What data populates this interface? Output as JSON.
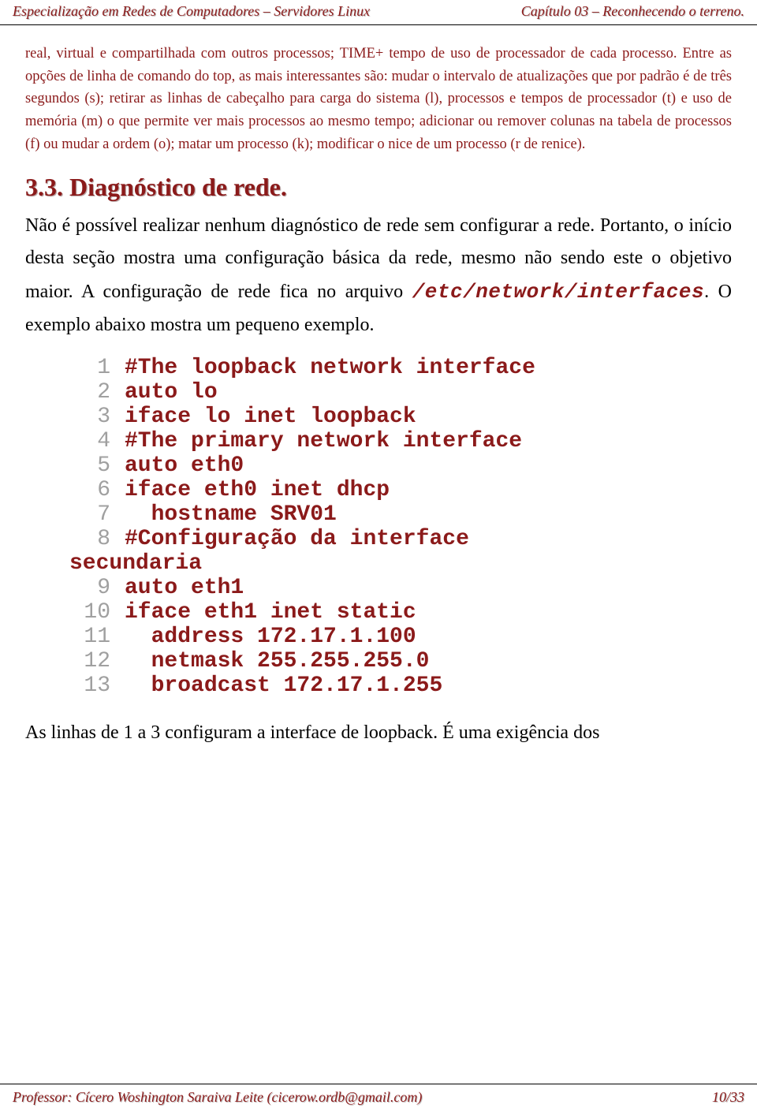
{
  "header": {
    "left": "Especialização em Redes de Computadores – Servidores Linux",
    "right": "Capítulo 03 – Reconhecendo o terreno."
  },
  "body": {
    "small_para": "real, virtual e compartilhada com outros processos; TIME+ tempo de uso de processador de cada processo. Entre as opções de linha de comando do top, as mais interessantes são: mudar o intervalo de atualizações que por padrão é de três segundos (s); retirar as linhas de cabeçalho para carga do sistema (l), processos e tempos de processador (t) e uso de memória (m) o que permite ver mais processos ao mesmo tempo; adicionar ou remover colunas na tabela de processos (f) ou mudar a ordem (o); matar um processo (k); modificar o nice de um processo (r de renice).",
    "heading": "3.3. Diagnóstico de rede.",
    "big_para_pre": "Não é possível realizar nenhum diagnóstico de rede sem configurar a rede. Portanto, o início desta seção mostra uma configuração básica da rede, mesmo não sendo este o objetivo maior. A configuração de rede fica no arquivo ",
    "code_inline": "/etc/network/interfaces",
    "big_para_post": ". O exemplo abaixo mostra um pequeno exemplo.",
    "code_lines": [
      {
        "n": "1",
        "t": "#The loopback network interface"
      },
      {
        "n": "2",
        "t": "auto lo"
      },
      {
        "n": "3",
        "t": "iface lo inet loopback"
      },
      {
        "n": "4",
        "t": "#The primary network interface"
      },
      {
        "n": "5",
        "t": "auto eth0"
      },
      {
        "n": "6",
        "t": "iface eth0 inet dhcp"
      },
      {
        "n": "7",
        "t": "  hostname SRV01"
      },
      {
        "n": "8",
        "t": "#Configuração da interface"
      },
      {
        "n": "",
        "t": "secundaria",
        "wrap": true
      },
      {
        "n": "9",
        "t": "auto eth1"
      },
      {
        "n": "10",
        "t": "iface eth1 inet static"
      },
      {
        "n": "11",
        "t": "  address 172.17.1.100"
      },
      {
        "n": "12",
        "t": "  netmask 255.255.255.0"
      },
      {
        "n": "13",
        "t": "  broadcast 172.17.1.255"
      }
    ],
    "after_para": "As linhas de 1 a 3 configuram a interface de loopback. É uma exigência dos"
  },
  "footer": {
    "left": "Professor: Cícero Woshington Saraiva Leite (cicerow.ordb@gmail.com)",
    "right": "10/33"
  }
}
